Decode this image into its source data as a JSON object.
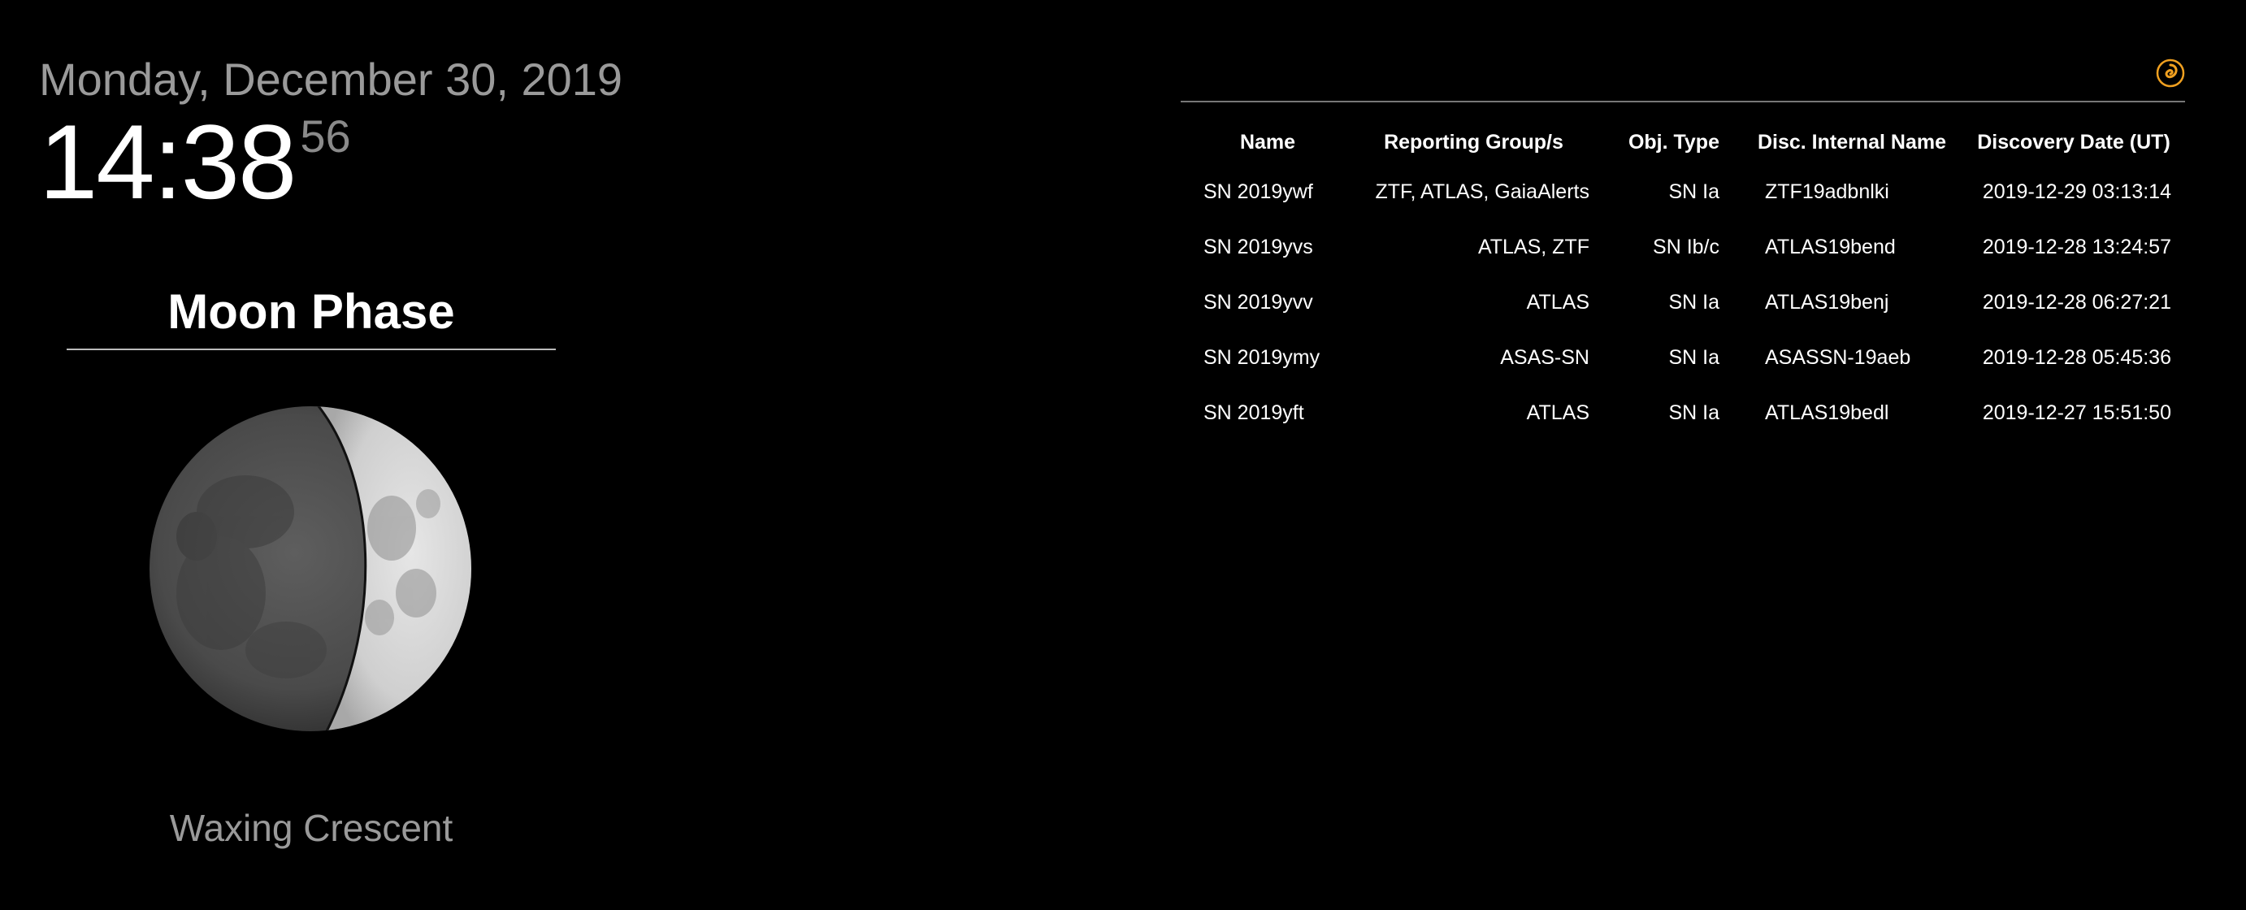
{
  "clock": {
    "date": "Monday, December 30, 2019",
    "hours_minutes": "14:38",
    "seconds": "56"
  },
  "moon": {
    "title": "Moon Phase",
    "phase_name": "Waxing Crescent",
    "icon": "moon-phase-image"
  },
  "supernova": {
    "logo_icon": "spiral-galaxy-icon",
    "logo_color": "#f0a020",
    "columns": [
      "Name",
      "Reporting Group/s",
      "Obj. Type",
      "Disc. Internal Name",
      "Discovery Date (UT)"
    ],
    "rows": [
      [
        "SN 2019ywf",
        "ZTF, ATLAS, GaiaAlerts",
        "SN Ia",
        "ZTF19adbnlki",
        "2019-12-29 03:13:14"
      ],
      [
        "SN 2019yvs",
        "ATLAS, ZTF",
        "SN Ib/c",
        "ATLAS19bend",
        "2019-12-28 13:24:57"
      ],
      [
        "SN 2019yvv",
        "ATLAS",
        "SN Ia",
        "ATLAS19benj",
        "2019-12-28 06:27:21"
      ],
      [
        "SN 2019ymy",
        "ASAS-SN",
        "SN Ia",
        "ASASSN-19aeb",
        "2019-12-28 05:45:36"
      ],
      [
        "SN 2019yft",
        "ATLAS",
        "SN Ia",
        "ATLAS19bedl",
        "2019-12-27 15:51:50"
      ]
    ]
  }
}
